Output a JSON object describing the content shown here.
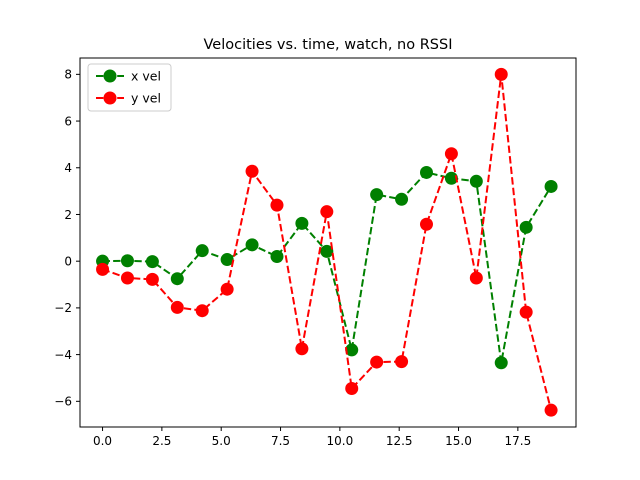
{
  "chart_data": {
    "type": "line",
    "title": "Velocities vs. time, watch, no RSSI",
    "xlabel": "",
    "ylabel": "",
    "xlim": [
      -0.95,
      19.95
    ],
    "ylim": [
      -7.1,
      8.7
    ],
    "xticks": [
      0.0,
      2.5,
      5.0,
      7.5,
      10.0,
      12.5,
      15.0,
      17.5
    ],
    "xtick_labels": [
      "0.0",
      "2.5",
      "5.0",
      "7.5",
      "10.0",
      "12.5",
      "15.0",
      "17.5"
    ],
    "yticks": [
      -6,
      -4,
      -2,
      0,
      2,
      4,
      6,
      8
    ],
    "ytick_labels": [
      "−6",
      "−4",
      "−2",
      "0",
      "2",
      "4",
      "6",
      "8"
    ],
    "grid": false,
    "legend_position": "top-left",
    "series": [
      {
        "name": "x vel",
        "color": "#008000",
        "x": [
          0.0,
          1.05,
          2.1,
          3.15,
          4.2,
          5.25,
          6.3,
          7.35,
          8.4,
          9.45,
          10.5,
          11.55,
          12.6,
          13.65,
          14.7,
          15.75,
          16.8,
          17.85,
          18.9
        ],
        "y": [
          0.0,
          0.02,
          -0.02,
          -0.75,
          0.45,
          0.07,
          0.7,
          0.2,
          1.62,
          0.42,
          -3.8,
          2.85,
          2.65,
          3.8,
          3.55,
          3.42,
          -4.35,
          1.45,
          3.2
        ]
      },
      {
        "name": "y vel",
        "color": "#ff0000",
        "x": [
          0.0,
          1.05,
          2.1,
          3.15,
          4.2,
          5.25,
          6.3,
          7.35,
          8.4,
          9.45,
          10.5,
          11.55,
          12.6,
          13.65,
          14.7,
          15.75,
          16.8,
          17.85,
          18.9
        ],
        "y": [
          -0.35,
          -0.72,
          -0.78,
          -1.98,
          -2.12,
          -1.2,
          3.85,
          2.4,
          -3.75,
          2.12,
          -5.45,
          -4.32,
          -4.3,
          1.58,
          4.6,
          -0.72,
          8.0,
          -2.18,
          -6.38
        ]
      }
    ]
  }
}
